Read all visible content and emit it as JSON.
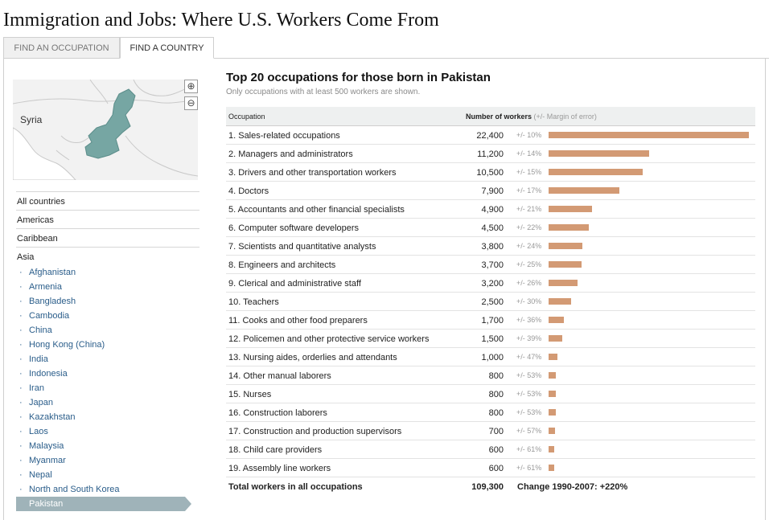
{
  "header": {
    "title": "Immigration and Jobs: Where U.S. Workers Come From"
  },
  "tabs": [
    {
      "label": "FIND AN OCCUPATION"
    },
    {
      "label": "FIND A COUNTRY"
    }
  ],
  "map": {
    "label": "Syria",
    "zoom_in": "⊕",
    "zoom_out": "⊖"
  },
  "nav": {
    "regions": [
      {
        "label": "All countries"
      },
      {
        "label": "Americas"
      },
      {
        "label": "Caribbean"
      },
      {
        "label": "Asia"
      }
    ],
    "asia_countries": [
      "Afghanistan",
      "Armenia",
      "Bangladesh",
      "Cambodia",
      "China",
      "Hong Kong (China)",
      "India",
      "Indonesia",
      "Iran",
      "Japan",
      "Kazakhstan",
      "Laos",
      "Malaysia",
      "Myanmar",
      "Nepal",
      "North and South Korea",
      "Pakistan"
    ],
    "selected": "Pakistan"
  },
  "main": {
    "title": "Top 20 occupations for those born in Pakistan",
    "subtitle": "Only occupations with at least 500 workers are shown.",
    "col_occupation": "Occupation",
    "col_workers": "Number of workers",
    "col_moe": "(+/- Margin of error)"
  },
  "chart_data": {
    "type": "bar",
    "categories": [
      "1. Sales-related occupations",
      "2. Managers and administrators",
      "3. Drivers and other transportation workers",
      "4. Doctors",
      "5. Accountants and other financial specialists",
      "6. Computer software developers",
      "7. Scientists and quantitative analysts",
      "8. Engineers and architects",
      "9. Clerical and administrative staff",
      "10. Teachers",
      "11. Cooks and other food preparers",
      "12. Policemen and other protective service workers",
      "13. Nursing aides, orderlies and attendants",
      "14. Other manual laborers",
      "15. Nurses",
      "16. Construction laborers",
      "17. Construction and production supervisors",
      "18. Child care providers",
      "19. Assembly line workers"
    ],
    "values": [
      22400,
      11200,
      10500,
      7900,
      4900,
      4500,
      3800,
      3700,
      3200,
      2500,
      1700,
      1500,
      1000,
      800,
      800,
      800,
      700,
      600,
      600
    ],
    "value_labels": [
      "22,400",
      "11,200",
      "10,500",
      "7,900",
      "4,900",
      "4,500",
      "3,800",
      "3,700",
      "3,200",
      "2,500",
      "1,700",
      "1,500",
      "1,000",
      "800",
      "800",
      "800",
      "700",
      "600",
      "600"
    ],
    "moe_labels": [
      "+/- 10%",
      "+/- 14%",
      "+/- 15%",
      "+/- 17%",
      "+/- 21%",
      "+/- 22%",
      "+/- 24%",
      "+/- 25%",
      "+/- 26%",
      "+/- 30%",
      "+/- 36%",
      "+/- 39%",
      "+/- 47%",
      "+/- 53%",
      "+/- 53%",
      "+/- 53%",
      "+/- 57%",
      "+/- 61%",
      "+/- 61%"
    ],
    "bar_color": "#d39a74"
  },
  "total": {
    "label": "Total workers in all occupations",
    "value": "109,300",
    "change": "Change 1990-2007: +220%"
  }
}
